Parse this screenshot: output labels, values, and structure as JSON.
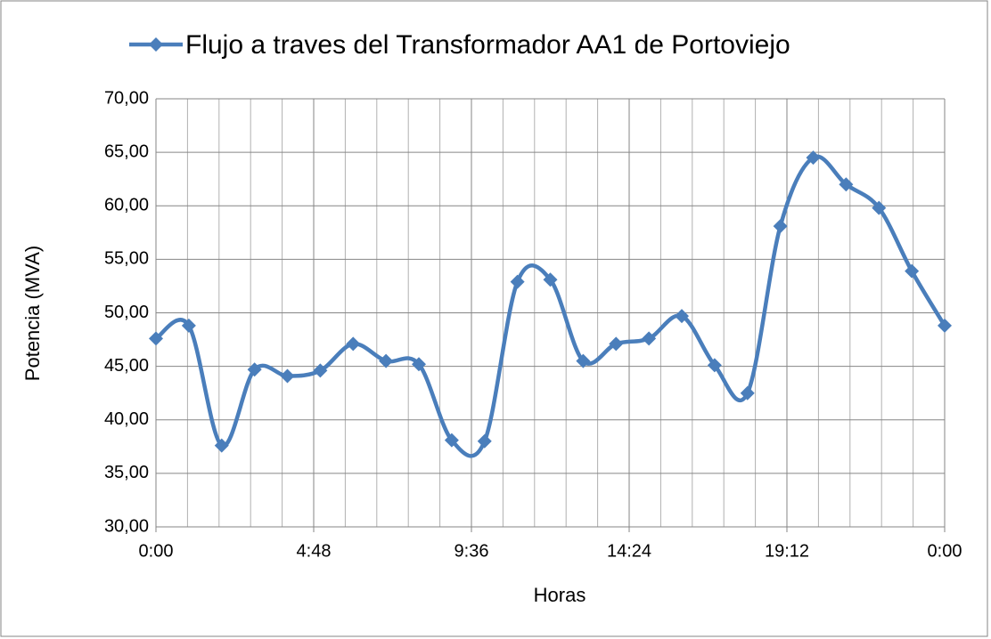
{
  "chart_data": {
    "type": "line",
    "x_label": "Horas",
    "y_label": "Potencia (MVA)",
    "x": [
      0,
      1,
      2,
      3,
      4,
      5,
      6,
      7,
      8,
      9,
      10,
      11,
      12,
      13,
      14,
      15,
      16,
      17,
      18,
      19,
      20,
      21,
      22,
      23,
      24
    ],
    "series": [
      {
        "name": "Flujo a traves del Transformador AA1 de Portoviejo",
        "color": "#4a7ebb",
        "values": [
          47.6,
          48.8,
          37.6,
          44.7,
          44.1,
          44.6,
          47.1,
          45.5,
          45.2,
          38.1,
          38.0,
          52.9,
          53.1,
          45.5,
          47.1,
          47.6,
          49.7,
          45.1,
          42.5,
          58.1,
          64.5,
          62.0,
          59.8,
          53.9,
          48.8
        ]
      }
    ],
    "xlim": [
      0,
      24
    ],
    "xticks": [
      {
        "value": 0,
        "label": "0:00"
      },
      {
        "value": 4.8,
        "label": "4:48"
      },
      {
        "value": 9.6,
        "label": "9:36"
      },
      {
        "value": 14.4,
        "label": "14:24"
      },
      {
        "value": 19.2,
        "label": "19:12"
      },
      {
        "value": 24,
        "label": "0:00"
      }
    ],
    "xminorticks": [
      0.96,
      1.92,
      2.88,
      3.84,
      5.76,
      6.72,
      7.68,
      8.64,
      10.56,
      11.52,
      12.48,
      13.44,
      15.36,
      16.32,
      17.28,
      18.24,
      20.16,
      21.12,
      22.08,
      23.04
    ],
    "ylim": [
      30,
      70
    ],
    "yticks": [
      {
        "value": 30,
        "label": "30,00"
      },
      {
        "value": 35,
        "label": "35,00"
      },
      {
        "value": 40,
        "label": "40,00"
      },
      {
        "value": 45,
        "label": "45,00"
      },
      {
        "value": 50,
        "label": "50,00"
      },
      {
        "value": 55,
        "label": "55,00"
      },
      {
        "value": 60,
        "label": "60,00"
      },
      {
        "value": 65,
        "label": "65,00"
      },
      {
        "value": 70,
        "label": "70,00"
      }
    ],
    "grid": true,
    "legend": "top"
  }
}
